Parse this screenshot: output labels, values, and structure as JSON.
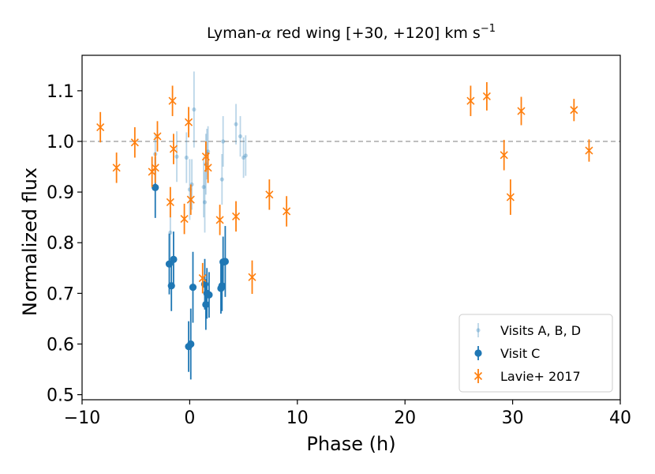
{
  "chart_data": {
    "type": "scatter",
    "title": "Lyman-α red wing [+30, +120] km s⁻¹",
    "title_parts": {
      "prefix": "Lyman-",
      "greek": "α",
      "middle": " red wing [+30, +120] km s",
      "superscript": "−1"
    },
    "xlabel": "Phase (h)",
    "ylabel": "Normalized flux",
    "xlim": [
      -10,
      40
    ],
    "ylim": [
      0.49,
      1.17
    ],
    "xticks": [
      -10,
      0,
      10,
      20,
      30,
      40
    ],
    "xtick_labels": [
      "−10",
      "0",
      "10",
      "20",
      "30",
      "40"
    ],
    "yticks": [
      0.5,
      0.6,
      0.7,
      0.8,
      0.9,
      1.0,
      1.1
    ],
    "ytick_labels": [
      "0.5",
      "0.6",
      "0.7",
      "0.8",
      "0.9",
      "1.0",
      "1.1"
    ],
    "reference_line": {
      "y": 1.0,
      "style": "dashed",
      "color": "#aaaaaa"
    },
    "grid": false,
    "legend_position": "lower-right",
    "series": [
      {
        "name": "Visits A, B, D",
        "marker": "small-circle",
        "color": "#1f77b4",
        "alpha": 0.3,
        "points": [
          {
            "x": -3.2,
            "y": 0.975,
            "err": 0.04
          },
          {
            "x": -1.8,
            "y": 0.82,
            "err": 0.05
          },
          {
            "x": -1.2,
            "y": 0.97,
            "err": 0.05
          },
          {
            "x": -0.3,
            "y": 0.968,
            "err": 0.05
          },
          {
            "x": 0.0,
            "y": 0.905,
            "err": 0.06
          },
          {
            "x": 0.2,
            "y": 0.915,
            "err": 0.05
          },
          {
            "x": 0.4,
            "y": 1.063,
            "err": 0.075
          },
          {
            "x": 1.3,
            "y": 0.91,
            "err": 0.06
          },
          {
            "x": 1.4,
            "y": 0.88,
            "err": 0.06
          },
          {
            "x": 1.5,
            "y": 0.955,
            "err": 0.06
          },
          {
            "x": 1.6,
            "y": 0.975,
            "err": 0.05
          },
          {
            "x": 1.7,
            "y": 0.98,
            "err": 0.05
          },
          {
            "x": 3.0,
            "y": 0.925,
            "err": 0.05
          },
          {
            "x": 3.1,
            "y": 1.0,
            "err": 0.05
          },
          {
            "x": 4.3,
            "y": 1.034,
            "err": 0.04
          },
          {
            "x": 4.7,
            "y": 1.01,
            "err": 0.04
          },
          {
            "x": 5.0,
            "y": 0.968,
            "err": 0.04
          },
          {
            "x": 5.2,
            "y": 0.972,
            "err": 0.04
          }
        ]
      },
      {
        "name": "Visit C",
        "marker": "circle",
        "color": "#1f77b4",
        "alpha": 1.0,
        "points": [
          {
            "x": -3.2,
            "y": 0.909,
            "err": 0.06
          },
          {
            "x": -1.9,
            "y": 0.758,
            "err": 0.06
          },
          {
            "x": -1.7,
            "y": 0.715,
            "err": 0.05
          },
          {
            "x": -1.5,
            "y": 0.767,
            "err": 0.055
          },
          {
            "x": -0.1,
            "y": 0.595,
            "err": 0.05
          },
          {
            "x": 0.1,
            "y": 0.6,
            "err": 0.07
          },
          {
            "x": 0.3,
            "y": 0.712,
            "err": 0.07
          },
          {
            "x": 1.4,
            "y": 0.718,
            "err": 0.05
          },
          {
            "x": 1.5,
            "y": 0.678,
            "err": 0.05
          },
          {
            "x": 1.6,
            "y": 0.7,
            "err": 0.05
          },
          {
            "x": 1.8,
            "y": 0.697,
            "err": 0.045
          },
          {
            "x": 2.9,
            "y": 0.71,
            "err": 0.05
          },
          {
            "x": 3.0,
            "y": 0.715,
            "err": 0.05
          },
          {
            "x": 3.1,
            "y": 0.762,
            "err": 0.05
          },
          {
            "x": 3.3,
            "y": 0.763,
            "err": 0.07
          }
        ]
      },
      {
        "name": "Lavie+ 2017",
        "marker": "x",
        "color": "#ff7f0e",
        "alpha": 1.0,
        "points": [
          {
            "x": -8.3,
            "y": 1.028,
            "err": 0.03
          },
          {
            "x": -6.8,
            "y": 0.948,
            "err": 0.03
          },
          {
            "x": -5.1,
            "y": 0.998,
            "err": 0.03
          },
          {
            "x": -3.5,
            "y": 0.94,
            "err": 0.03
          },
          {
            "x": -3.2,
            "y": 0.948,
            "err": 0.03
          },
          {
            "x": -3.0,
            "y": 1.01,
            "err": 0.03
          },
          {
            "x": -1.8,
            "y": 0.88,
            "err": 0.03
          },
          {
            "x": -1.6,
            "y": 1.08,
            "err": 0.03
          },
          {
            "x": -1.5,
            "y": 0.985,
            "err": 0.03
          },
          {
            "x": -0.5,
            "y": 0.847,
            "err": 0.03
          },
          {
            "x": -0.1,
            "y": 1.038,
            "err": 0.03
          },
          {
            "x": 0.1,
            "y": 0.885,
            "err": 0.03
          },
          {
            "x": 1.2,
            "y": 0.73,
            "err": 0.03
          },
          {
            "x": 1.5,
            "y": 0.97,
            "err": 0.03
          },
          {
            "x": 1.7,
            "y": 0.948,
            "err": 0.03
          },
          {
            "x": 2.8,
            "y": 0.845,
            "err": 0.03
          },
          {
            "x": 4.3,
            "y": 0.852,
            "err": 0.03
          },
          {
            "x": 7.4,
            "y": 0.895,
            "err": 0.03
          },
          {
            "x": 9.0,
            "y": 0.862,
            "err": 0.03
          },
          {
            "x": 5.8,
            "y": 0.732,
            "err": 0.033
          },
          {
            "x": 26.1,
            "y": 1.08,
            "err": 0.03
          },
          {
            "x": 27.6,
            "y": 1.089,
            "err": 0.028
          },
          {
            "x": 29.2,
            "y": 0.973,
            "err": 0.03
          },
          {
            "x": 29.8,
            "y": 0.89,
            "err": 0.035
          },
          {
            "x": 30.8,
            "y": 1.06,
            "err": 0.028
          },
          {
            "x": 35.7,
            "y": 1.062,
            "err": 0.022
          },
          {
            "x": 37.1,
            "y": 0.982,
            "err": 0.022
          }
        ]
      }
    ]
  }
}
